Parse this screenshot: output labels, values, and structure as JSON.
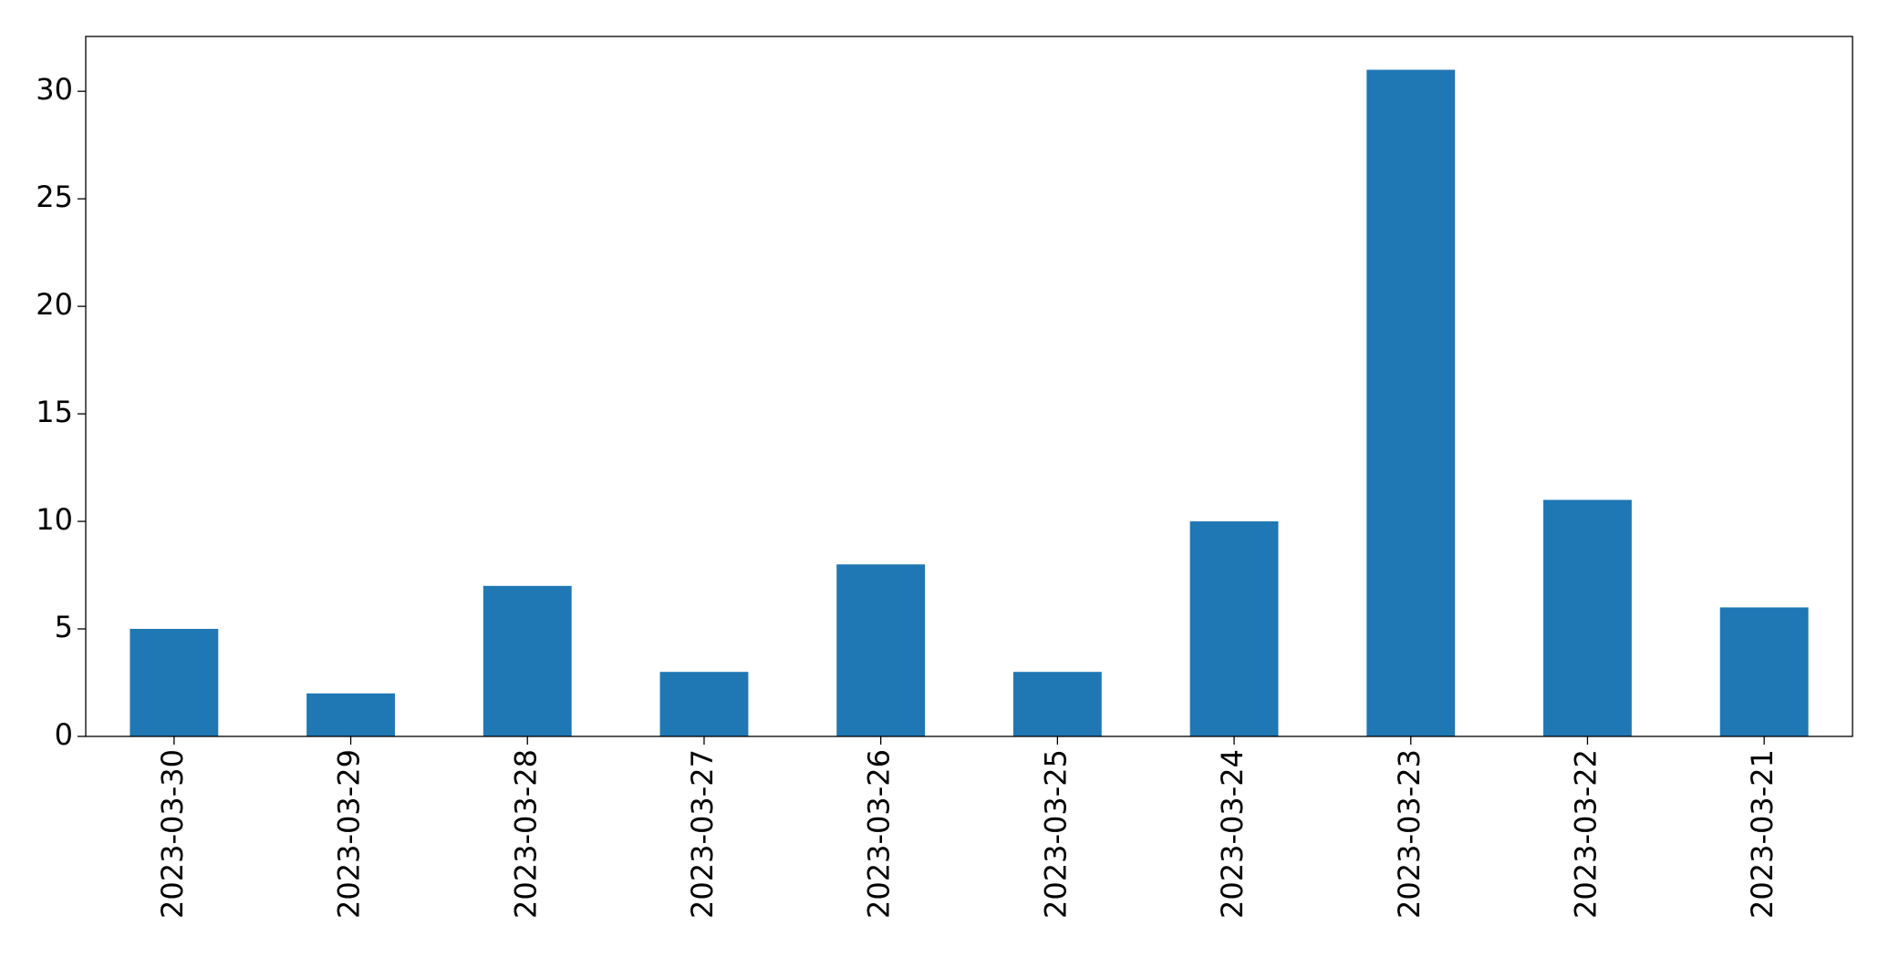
{
  "chart_data": {
    "type": "bar",
    "categories": [
      "2023-03-30",
      "2023-03-29",
      "2023-03-28",
      "2023-03-27",
      "2023-03-26",
      "2023-03-25",
      "2023-03-24",
      "2023-03-23",
      "2023-03-22",
      "2023-03-21"
    ],
    "values": [
      5,
      2,
      7,
      3,
      8,
      3,
      10,
      31,
      11,
      6
    ],
    "color": "#1f77b4",
    "ylim": [
      0,
      32.55
    ],
    "yticks": [
      0,
      5,
      10,
      15,
      20,
      25,
      30
    ],
    "grid": false
  }
}
